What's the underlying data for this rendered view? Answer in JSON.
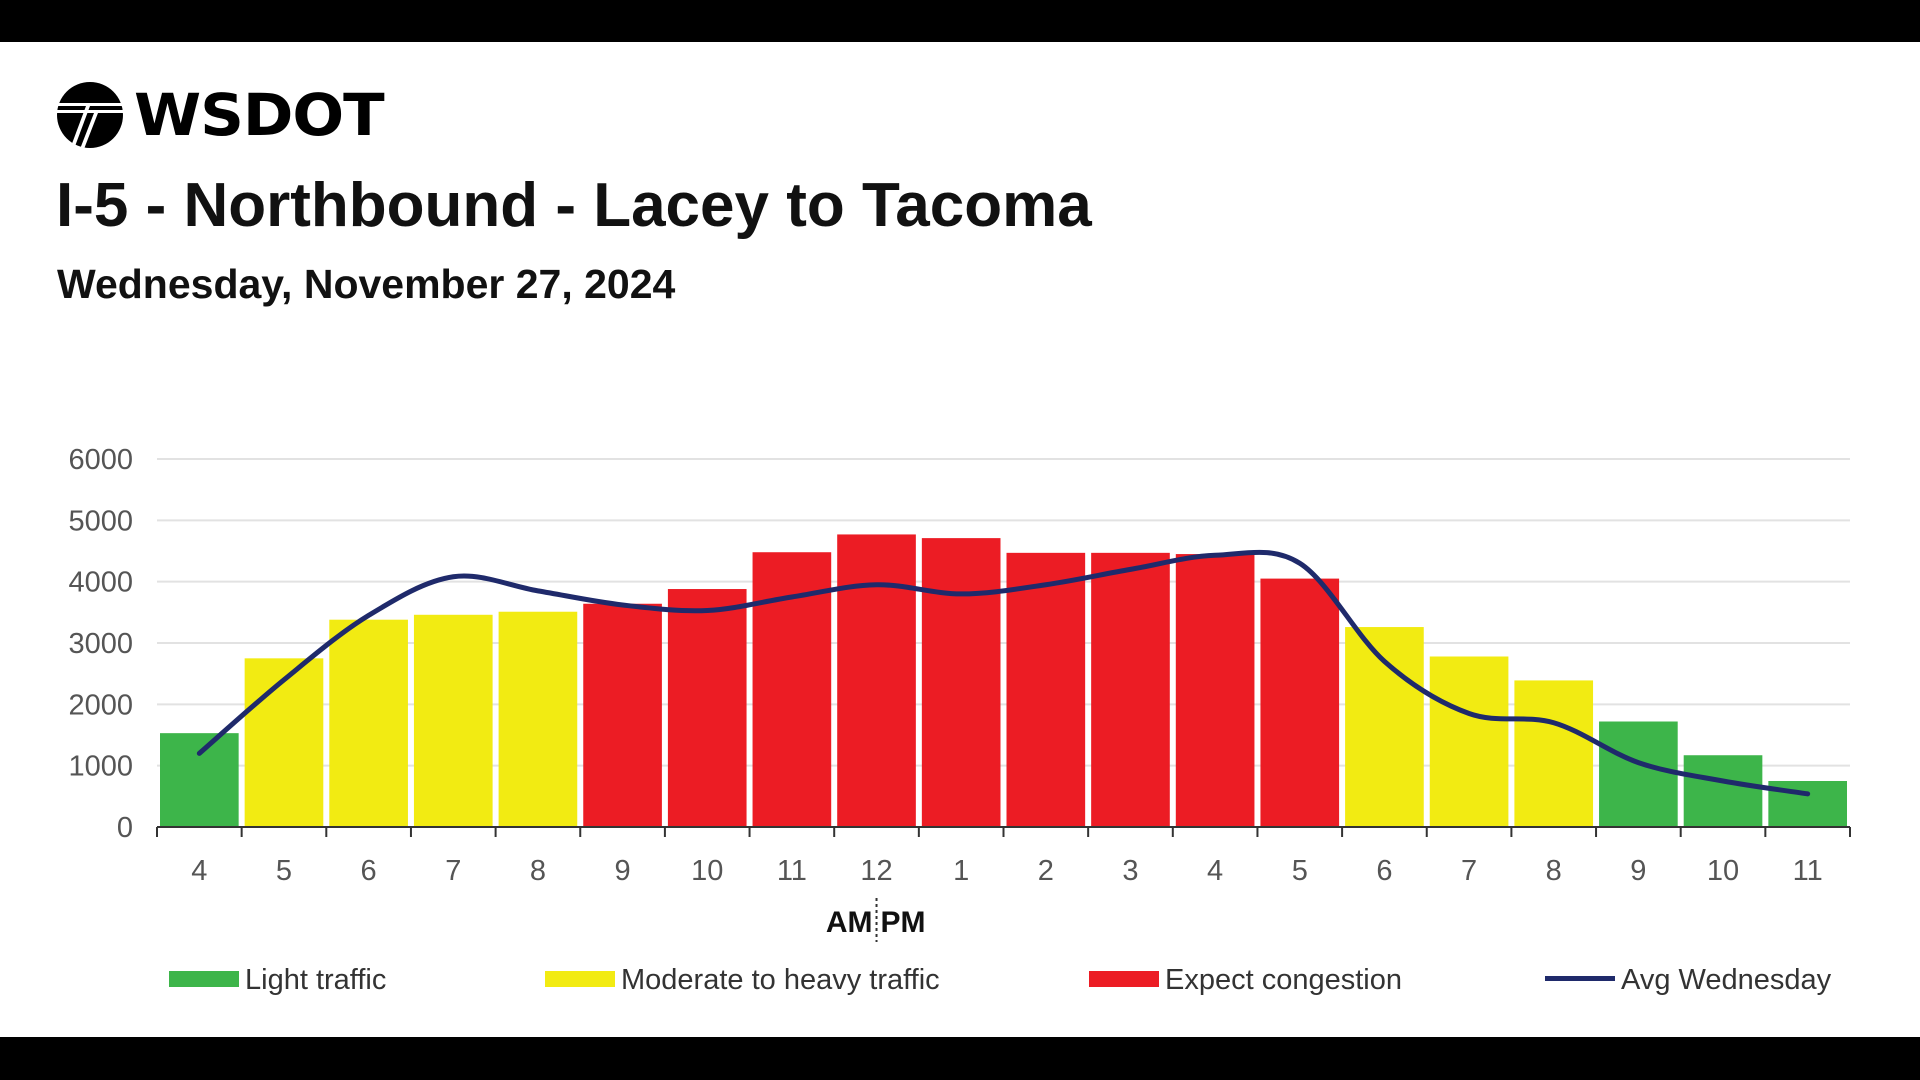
{
  "header": {
    "logo_text": "WSDOT",
    "title": "I-5 - Northbound - Lacey to Tacoma",
    "subtitle": "Wednesday, November 27, 2024"
  },
  "chart_data": {
    "type": "bar",
    "title": "I-5 - Northbound - Lacey to Tacoma",
    "subtitle": "Wednesday, November 27, 2024",
    "categories": [
      "4",
      "5",
      "6",
      "7",
      "8",
      "9",
      "10",
      "11",
      "12",
      "1",
      "2",
      "3",
      "4",
      "5",
      "6",
      "7",
      "8",
      "9",
      "10",
      "11"
    ],
    "am_label": "AM",
    "pm_label": "PM",
    "ylim": [
      0,
      6000
    ],
    "yticks": [
      0,
      1000,
      2000,
      3000,
      4000,
      5000,
      6000
    ],
    "grid": true,
    "legend_position": "bottom",
    "values": [
      1530,
      2750,
      3380,
      3460,
      3510,
      3640,
      3880,
      4480,
      4770,
      4710,
      4470,
      4470,
      4450,
      4050,
      3260,
      2780,
      2390,
      1720,
      1170,
      750
    ],
    "levels": [
      "light",
      "moderate",
      "moderate",
      "moderate",
      "moderate",
      "congestion",
      "congestion",
      "congestion",
      "congestion",
      "congestion",
      "congestion",
      "congestion",
      "congestion",
      "congestion",
      "moderate",
      "moderate",
      "moderate",
      "light",
      "light",
      "light"
    ],
    "series": [
      {
        "name": "Avg Wednesday",
        "type": "line",
        "values": [
          1200,
          2400,
          3450,
          4080,
          3850,
          3620,
          3530,
          3750,
          3950,
          3800,
          3950,
          4200,
          4430,
          4300,
          2700,
          1850,
          1700,
          1050,
          750,
          540
        ]
      }
    ],
    "legend": [
      {
        "key": "light",
        "label": "Light traffic",
        "color": "#3db54a"
      },
      {
        "key": "moderate",
        "label": "Moderate to heavy traffic",
        "color": "#f2eb12"
      },
      {
        "key": "congestion",
        "label": "Expect congestion",
        "color": "#ec1c24"
      },
      {
        "key": "avg",
        "label": "Avg Wednesday",
        "color": "#1f2a6b"
      }
    ]
  }
}
